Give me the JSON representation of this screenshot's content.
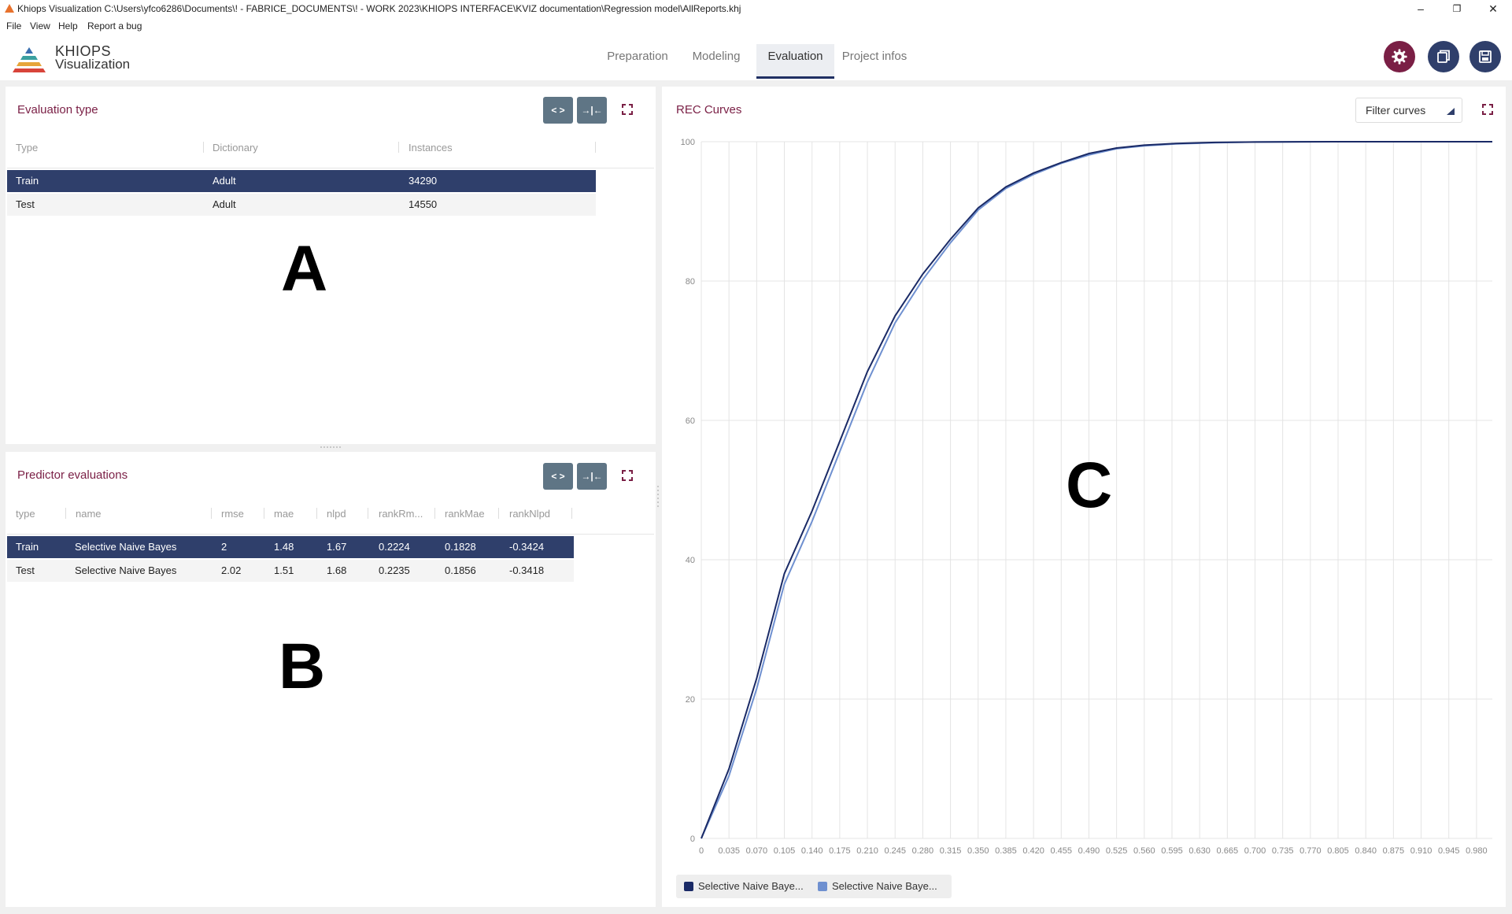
{
  "window": {
    "title": "Khiops Visualization C:\\Users\\yfco6286\\Documents\\! - FABRICE_DOCUMENTS\\! - WORK 2023\\KHIOPS INTERFACE\\KVIZ documentation\\Regression model\\AllReports.khj",
    "minimize": "–",
    "restore": "❐",
    "close": "✕"
  },
  "menu": {
    "file": "File",
    "view": "View",
    "help": "Help",
    "report": "Report a bug"
  },
  "logo": {
    "line1": "KHIOPS",
    "line2": "Visualization"
  },
  "tabs": [
    {
      "label": "Preparation"
    },
    {
      "label": "Modeling"
    },
    {
      "label": "Evaluation"
    },
    {
      "label": "Project infos"
    }
  ],
  "header_buttons": {
    "settings": "settings-icon",
    "copy": "copy-icon",
    "save": "save-icon",
    "settings_color": "#7a1f45",
    "button_color": "#2f3f6b"
  },
  "eval_type": {
    "title": "Evaluation type",
    "btn_expand_cols": "< >",
    "btn_fit_cols": "→|←",
    "headers": [
      "Type",
      "Dictionary",
      "Instances"
    ],
    "rows": [
      {
        "type": "Train",
        "dictionary": "Adult",
        "instances": "34290"
      },
      {
        "type": "Test",
        "dictionary": "Adult",
        "instances": "14550"
      }
    ]
  },
  "predictor": {
    "title": "Predictor evaluations",
    "btn_expand_cols": "< >",
    "btn_fit_cols": "→|←",
    "headers": [
      "type",
      "name",
      "rmse",
      "mae",
      "nlpd",
      "rankRm...",
      "rankMae",
      "rankNlpd"
    ],
    "rows": [
      {
        "type": "Train",
        "name": "Selective Naive Bayes",
        "rmse": "2",
        "mae": "1.48",
        "nlpd": "1.67",
        "rankRmse": "0.2224",
        "rankMae": "0.1828",
        "rankNlpd": "-0.3424"
      },
      {
        "type": "Test",
        "name": "Selective Naive Bayes",
        "rmse": "2.02",
        "mae": "1.51",
        "nlpd": "1.68",
        "rankRmse": "0.2235",
        "rankMae": "0.1856",
        "rankNlpd": "-0.3418"
      }
    ]
  },
  "annotations": {
    "a": "A",
    "b": "B",
    "c": "C"
  },
  "rec": {
    "title": "REC Curves",
    "filter_label": "Filter curves",
    "legend": [
      {
        "label": "Selective Naive Baye...",
        "color": "#1a2a66"
      },
      {
        "label": "Selective Naive Baye...",
        "color": "#6f90d0"
      }
    ]
  },
  "chart_data": {
    "type": "line",
    "title": "REC Curves",
    "xlabel": "",
    "ylabel": "",
    "xlim": [
      0,
      1
    ],
    "ylim": [
      0,
      100
    ],
    "x_ticks": [
      "0",
      "0.035",
      "0.070",
      "0.105",
      "0.140",
      "0.175",
      "0.210",
      "0.245",
      "0.280",
      "0.315",
      "0.350",
      "0.385",
      "0.420",
      "0.455",
      "0.490",
      "0.525",
      "0.560",
      "0.595",
      "0.630",
      "0.665",
      "0.700",
      "0.735",
      "0.770",
      "0.805",
      "0.840",
      "0.875",
      "0.910",
      "0.945",
      "0.980"
    ],
    "y_ticks": [
      0,
      20,
      40,
      60,
      80,
      100
    ],
    "grid": true,
    "legend_position": "bottom-left",
    "series": [
      {
        "name": "Selective Naive Baye...",
        "color": "#1a2a66",
        "x": [
          0,
          0.035,
          0.07,
          0.105,
          0.14,
          0.175,
          0.21,
          0.245,
          0.28,
          0.315,
          0.35,
          0.385,
          0.42,
          0.455,
          0.49,
          0.525,
          0.56,
          0.6,
          0.65,
          0.7,
          0.8,
          0.9,
          1.0
        ],
        "y": [
          0,
          10,
          23,
          38,
          47,
          57,
          67,
          75,
          81,
          86,
          90.5,
          93.5,
          95.5,
          97,
          98.3,
          99.1,
          99.5,
          99.75,
          99.9,
          99.95,
          100,
          100,
          100
        ]
      },
      {
        "name": "Selective Naive Baye...",
        "color": "#6f90d0",
        "x": [
          0,
          0.035,
          0.07,
          0.105,
          0.14,
          0.175,
          0.21,
          0.245,
          0.28,
          0.315,
          0.35,
          0.385,
          0.42,
          0.455,
          0.49,
          0.525,
          0.56,
          0.6,
          0.65,
          0.7,
          0.8,
          0.9,
          1.0
        ],
        "y": [
          0,
          9,
          21.5,
          36.5,
          45.5,
          55.5,
          65.5,
          74,
          80.2,
          85.5,
          90.2,
          93.3,
          95.3,
          96.9,
          98.1,
          99,
          99.4,
          99.7,
          99.85,
          99.95,
          100,
          100,
          100
        ]
      }
    ]
  }
}
